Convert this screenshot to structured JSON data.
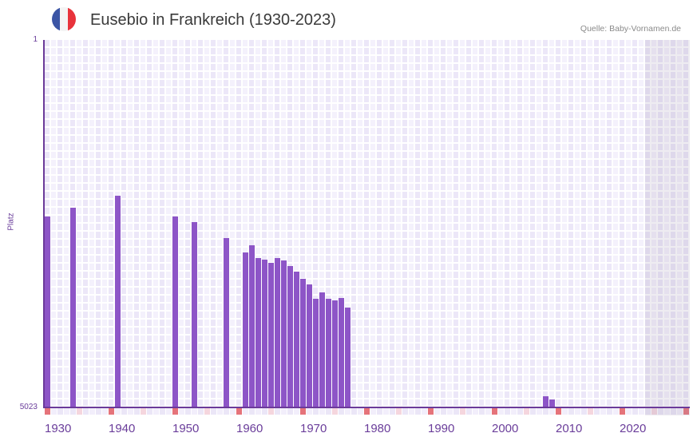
{
  "header": {
    "title": "Eusebio in Frankreich (1930-2023)",
    "source": "Quelle: Baby-Vornamen.de",
    "flag": {
      "icon": "france-flag-icon",
      "colors": [
        "#3b55a5",
        "#f4f4f4",
        "#e8333b"
      ]
    }
  },
  "axes": {
    "y_top_label": "1",
    "y_bottom_label": "5023",
    "y_title": "Platz"
  },
  "colors": {
    "bar": "#8d55c7",
    "axis": "#6b3a9a",
    "decade_marker": "#e5737a",
    "half_decade_marker": "#f5d6de",
    "strip_even": "#ebe6f7",
    "strip_odd": "#f2eefb"
  },
  "chart_data": {
    "type": "bar",
    "title": "Eusebio in Frankreich (1930-2023)",
    "xlabel": "",
    "ylabel": "Platz",
    "y_range": [
      1,
      5023
    ],
    "y_inverted": true,
    "x_range": [
      1930,
      2030
    ],
    "xticks": [
      1930,
      1940,
      1950,
      1960,
      1970,
      1980,
      1990,
      2000,
      2010,
      2020
    ],
    "shaded_from_year": 2024,
    "grid": true,
    "series": [
      {
        "name": "Platz",
        "points": [
          {
            "year": 1930,
            "rank": 2414
          },
          {
            "year": 1934,
            "rank": 2294
          },
          {
            "year": 1941,
            "rank": 2130
          },
          {
            "year": 1950,
            "rank": 2414
          },
          {
            "year": 1953,
            "rank": 2490
          },
          {
            "year": 1958,
            "rank": 2709
          },
          {
            "year": 1961,
            "rank": 2905
          },
          {
            "year": 1962,
            "rank": 2807
          },
          {
            "year": 1963,
            "rank": 2981
          },
          {
            "year": 1964,
            "rank": 3003
          },
          {
            "year": 1965,
            "rank": 3047
          },
          {
            "year": 1966,
            "rank": 2981
          },
          {
            "year": 1967,
            "rank": 3014
          },
          {
            "year": 1968,
            "rank": 3091
          },
          {
            "year": 1969,
            "rank": 3167
          },
          {
            "year": 1970,
            "rank": 3265
          },
          {
            "year": 1971,
            "rank": 3342
          },
          {
            "year": 1972,
            "rank": 3538
          },
          {
            "year": 1973,
            "rank": 3451
          },
          {
            "year": 1974,
            "rank": 3538
          },
          {
            "year": 1975,
            "rank": 3560
          },
          {
            "year": 1976,
            "rank": 3527
          },
          {
            "year": 1977,
            "rank": 3658
          },
          {
            "year": 2008,
            "rank": 4870
          },
          {
            "year": 2009,
            "rank": 4914
          }
        ]
      }
    ]
  }
}
